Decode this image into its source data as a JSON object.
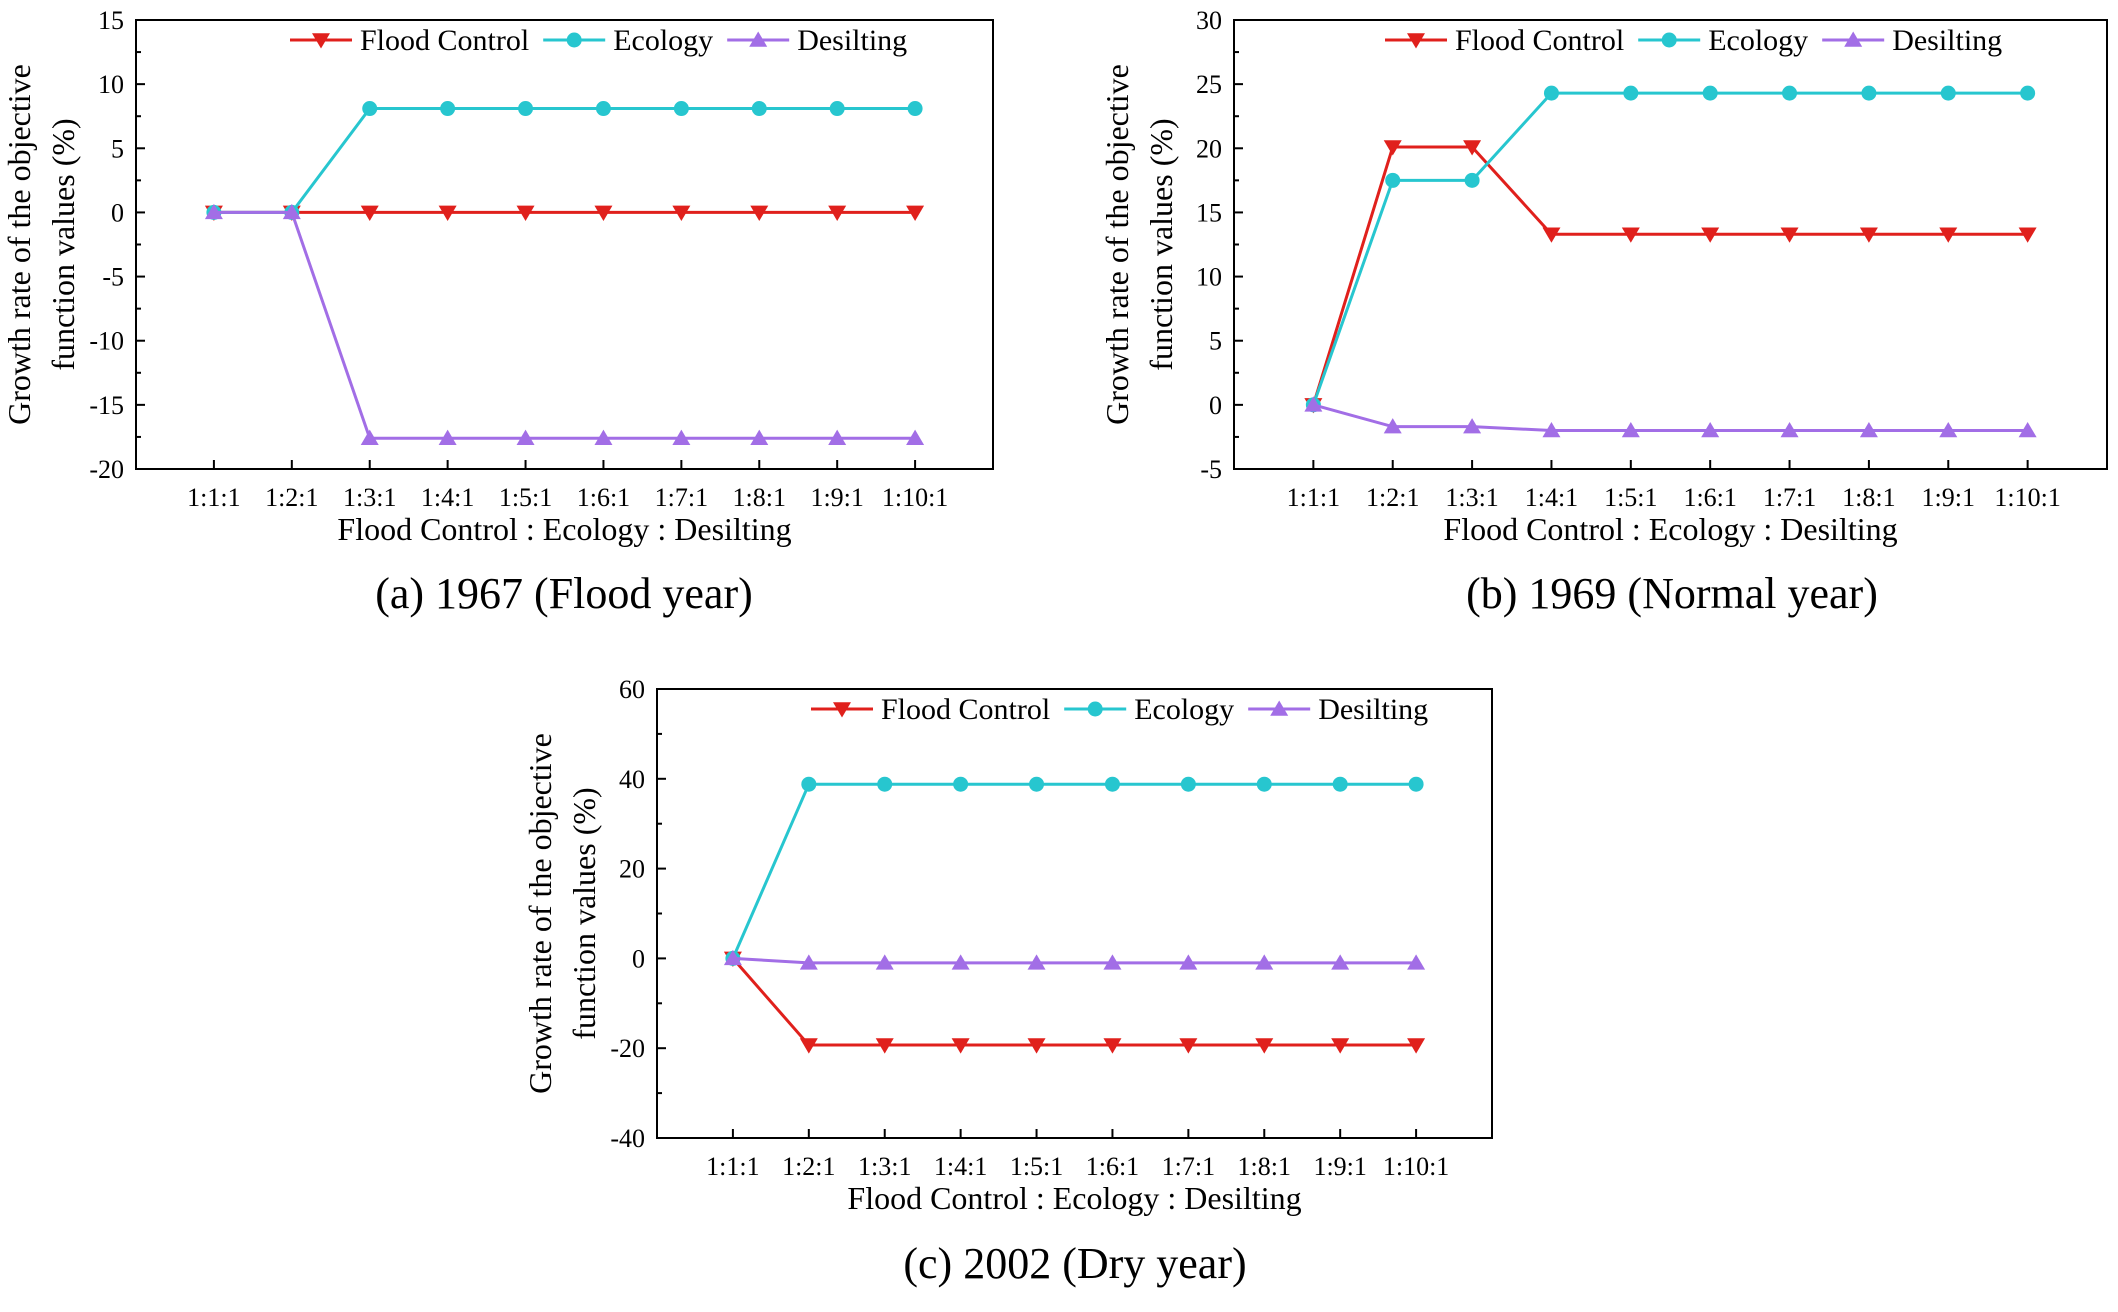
{
  "chart_data": [
    {
      "type": "line",
      "caption": "(a) 1967 (Flood year)",
      "xlabel": "Flood Control : Ecology : Desilting",
      "ylabel": [
        "Growth rate of the objective",
        "function values (%)"
      ],
      "categories": [
        "1:1:1",
        "1:2:1",
        "1:3:1",
        "1:4:1",
        "1:5:1",
        "1:6:1",
        "1:7:1",
        "1:8:1",
        "1:9:1",
        "1:10:1"
      ],
      "ylim": [
        -20,
        15
      ],
      "yticks": [
        -20,
        -15,
        -10,
        -5,
        0,
        5,
        10,
        15
      ],
      "legend_position": "top",
      "grid": false,
      "series": [
        {
          "name": "Flood Control",
          "color": "#e0201c",
          "marker": "triangle-down",
          "values": [
            0,
            0,
            0,
            0,
            0,
            0,
            0,
            0,
            0,
            0
          ]
        },
        {
          "name": "Ecology",
          "color": "#27c6cf",
          "marker": "circle",
          "values": [
            0,
            0,
            8.1,
            8.1,
            8.1,
            8.1,
            8.1,
            8.1,
            8.1,
            8.1
          ]
        },
        {
          "name": "Desilting",
          "color": "#a26ee6",
          "marker": "triangle-up",
          "values": [
            0,
            0,
            -17.6,
            -17.6,
            -17.6,
            -17.6,
            -17.6,
            -17.6,
            -17.6,
            -17.6
          ]
        }
      ]
    },
    {
      "type": "line",
      "caption": "(b) 1969 (Normal year)",
      "xlabel": "Flood Control : Ecology : Desilting",
      "ylabel": [
        "Growth rate of the objective",
        "function values (%)"
      ],
      "categories": [
        "1:1:1",
        "1:2:1",
        "1:3:1",
        "1:4:1",
        "1:5:1",
        "1:6:1",
        "1:7:1",
        "1:8:1",
        "1:9:1",
        "1:10:1"
      ],
      "ylim": [
        -5,
        30
      ],
      "yticks": [
        -5,
        0,
        5,
        10,
        15,
        20,
        25,
        30
      ],
      "legend_position": "top",
      "grid": false,
      "series": [
        {
          "name": "Flood Control",
          "color": "#e0201c",
          "marker": "triangle-down",
          "values": [
            0,
            20.1,
            20.1,
            13.3,
            13.3,
            13.3,
            13.3,
            13.3,
            13.3,
            13.3
          ]
        },
        {
          "name": "Ecology",
          "color": "#27c6cf",
          "marker": "circle",
          "values": [
            0,
            17.5,
            17.5,
            24.3,
            24.3,
            24.3,
            24.3,
            24.3,
            24.3,
            24.3
          ]
        },
        {
          "name": "Desilting",
          "color": "#a26ee6",
          "marker": "triangle-up",
          "values": [
            0,
            -1.7,
            -1.7,
            -2.0,
            -2.0,
            -2.0,
            -2.0,
            -2.0,
            -2.0,
            -2.0
          ]
        }
      ]
    },
    {
      "type": "line",
      "caption": "(c) 2002 (Dry year)",
      "xlabel": "Flood Control : Ecology : Desilting",
      "ylabel": [
        "Growth rate of the objective",
        "function values (%)"
      ],
      "categories": [
        "1:1:1",
        "1:2:1",
        "1:3:1",
        "1:4:1",
        "1:5:1",
        "1:6:1",
        "1:7:1",
        "1:8:1",
        "1:9:1",
        "1:10:1"
      ],
      "ylim": [
        -40,
        60
      ],
      "yticks": [
        -40,
        -20,
        0,
        20,
        40,
        60
      ],
      "legend_position": "top",
      "grid": false,
      "series": [
        {
          "name": "Flood Control",
          "color": "#e0201c",
          "marker": "triangle-down",
          "values": [
            0,
            -19.3,
            -19.3,
            -19.3,
            -19.3,
            -19.3,
            -19.3,
            -19.3,
            -19.3,
            -19.3
          ]
        },
        {
          "name": "Ecology",
          "color": "#27c6cf",
          "marker": "circle",
          "values": [
            0,
            38.8,
            38.8,
            38.8,
            38.8,
            38.8,
            38.8,
            38.8,
            38.8,
            38.8
          ]
        },
        {
          "name": "Desilting",
          "color": "#a26ee6",
          "marker": "triangle-up",
          "values": [
            0,
            -1.0,
            -1.0,
            -1.0,
            -1.0,
            -1.0,
            -1.0,
            -1.0,
            -1.0,
            -1.0
          ]
        }
      ]
    }
  ]
}
